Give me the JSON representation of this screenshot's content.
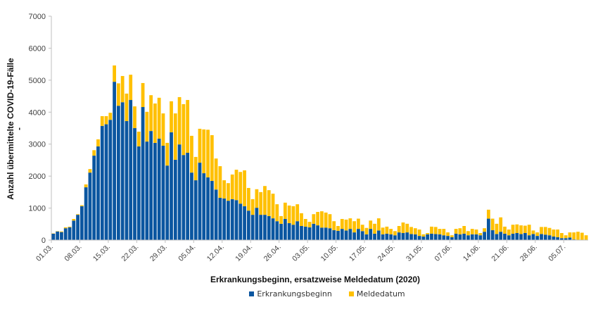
{
  "chart_data": {
    "type": "bar",
    "stacked": true,
    "title": "",
    "xlabel": "Erkrankungsbeginn, ersatzweise Meldedatum (2020)",
    "ylabel": "Anzahl übermittelte COVID-19-Fälle",
    "ylabel_suffix": "-",
    "ylim": [
      0,
      7000
    ],
    "yticks": [
      0,
      1000,
      2000,
      3000,
      4000,
      5000,
      6000,
      7000
    ],
    "grid": false,
    "legend_position": "bottom",
    "start_date": "2020-03-01",
    "day_count": 132,
    "xtick_labels": [
      "01.03.",
      "08.03.",
      "15.03.",
      "22.03.",
      "29.03.",
      "05.04.",
      "12.04.",
      "19.04.",
      "26.04.",
      "03.05.",
      "10.05.",
      "17.05.",
      "24.05.",
      "31.05.",
      "07.06.",
      "14.06.",
      "21.06.",
      "28.06.",
      "05.07."
    ],
    "xtick_every": 7,
    "series": [
      {
        "name": "Erkrankungsbeginn",
        "color": "#0B56A0",
        "values": [
          200,
          270,
          250,
          370,
          400,
          610,
          790,
          1060,
          1650,
          2110,
          2640,
          2930,
          3570,
          3620,
          3760,
          4950,
          4200,
          4310,
          3720,
          4380,
          3500,
          2930,
          4160,
          3080,
          3410,
          3040,
          3170,
          2950,
          2330,
          3370,
          2510,
          2990,
          2660,
          2730,
          2110,
          1870,
          2420,
          2090,
          1960,
          1850,
          1580,
          1320,
          1300,
          1230,
          1280,
          1250,
          1140,
          1060,
          920,
          790,
          1010,
          790,
          790,
          750,
          680,
          590,
          510,
          660,
          530,
          480,
          590,
          440,
          420,
          400,
          510,
          460,
          390,
          390,
          370,
          310,
          290,
          350,
          300,
          350,
          240,
          350,
          280,
          180,
          350,
          200,
          300,
          180,
          200,
          180,
          150,
          240,
          220,
          240,
          190,
          180,
          130,
          110,
          180,
          200,
          190,
          180,
          150,
          130,
          90,
          200,
          180,
          200,
          150,
          180,
          180,
          150,
          260,
          670,
          310,
          190,
          260,
          200,
          150,
          200,
          220,
          190,
          220,
          150,
          190,
          130,
          190,
          170,
          150,
          110,
          90,
          60,
          60,
          80,
          20,
          10,
          0,
          0
        ]
      },
      {
        "name": "Meldedatum",
        "color": "#FFC000",
        "values": [
          10,
          10,
          20,
          30,
          20,
          50,
          20,
          30,
          90,
          110,
          170,
          220,
          305,
          255,
          220,
          510,
          700,
          820,
          860,
          790,
          680,
          460,
          750,
          930,
          1120,
          1230,
          1280,
          1010,
          710,
          970,
          1450,
          1480,
          1590,
          1650,
          1150,
          730,
          1060,
          1370,
          1490,
          1430,
          970,
          990,
          570,
          550,
          770,
          950,
          990,
          1120,
          710,
          490,
          580,
          710,
          900,
          810,
          770,
          530,
          240,
          510,
          550,
          580,
          530,
          400,
          240,
          170,
          300,
          420,
          510,
          470,
          440,
          280,
          150,
          310,
          340,
          330,
          350,
          320,
          200,
          200,
          260,
          310,
          380,
          210,
          220,
          170,
          130,
          200,
          330,
          270,
          220,
          190,
          200,
          70,
          40,
          220,
          220,
          170,
          200,
          110,
          60,
          150,
          190,
          240,
          130,
          170,
          150,
          70,
          110,
          280,
          360,
          320,
          450,
          220,
          180,
          280,
          270,
          270,
          230,
          330,
          110,
          110,
          220,
          240,
          230,
          220,
          240,
          160,
          90,
          160,
          220,
          250,
          230,
          150
        ]
      }
    ]
  },
  "legend": {
    "items": [
      {
        "label": "Erkrankungsbeginn",
        "color": "#0B56A0"
      },
      {
        "label": "Meldedatum",
        "color": "#FFC000"
      }
    ]
  }
}
